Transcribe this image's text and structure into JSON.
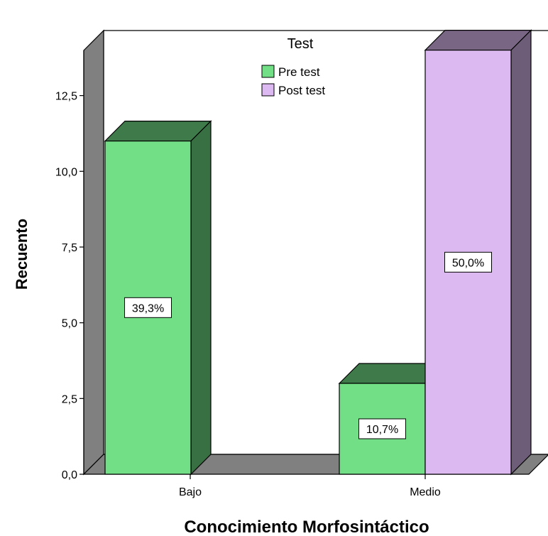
{
  "chart_data": {
    "type": "bar",
    "style": "3d-clustered",
    "xlabel": "Conocimiento Morfosintáctico",
    "ylabel": "Recuento",
    "categories": [
      "Bajo",
      "Medio"
    ],
    "ylim": [
      0,
      15
    ],
    "yticks": [
      "0,0",
      "2,5",
      "5,0",
      "7,5",
      "10,0",
      "12,5"
    ],
    "ytick_values": [
      0,
      2.5,
      5,
      7.5,
      10,
      12.5
    ],
    "legend": {
      "title": "Test",
      "position": "top-center"
    },
    "series": [
      {
        "name": "Pre test",
        "color": "#72df86",
        "values": [
          11,
          3
        ],
        "labels": [
          "39,3%",
          "10,7%"
        ]
      },
      {
        "name": "Post test",
        "color": "#dcb9f0",
        "values": [
          0,
          14
        ],
        "labels": [
          "",
          "50,0%"
        ]
      }
    ],
    "grid": false
  }
}
